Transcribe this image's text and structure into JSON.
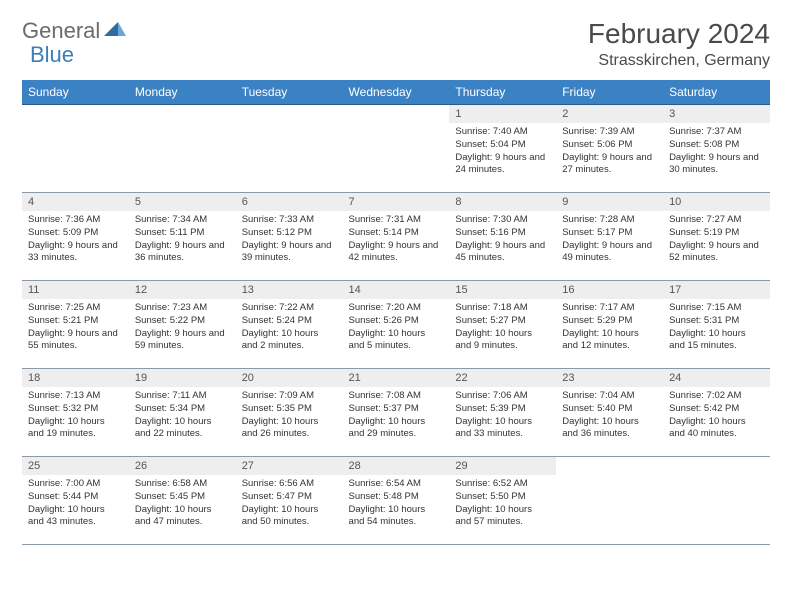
{
  "logo": {
    "part1": "General",
    "part2": "Blue"
  },
  "title": "February 2024",
  "location": "Strasskirchen, Germany",
  "colors": {
    "header_bg": "#3b82c4",
    "header_text": "#ffffff",
    "daynum_bg": "#eeeeee",
    "border": "#8a9aa8",
    "logo_gray": "#6b6b6b",
    "logo_blue": "#3b7fb8",
    "title_color": "#4a4a4a"
  },
  "weekdays": [
    "Sunday",
    "Monday",
    "Tuesday",
    "Wednesday",
    "Thursday",
    "Friday",
    "Saturday"
  ],
  "weeks": [
    [
      {
        "empty": true
      },
      {
        "empty": true
      },
      {
        "empty": true
      },
      {
        "empty": true
      },
      {
        "n": "1",
        "sr": "7:40 AM",
        "ss": "5:04 PM",
        "dl": "9 hours and 24 minutes."
      },
      {
        "n": "2",
        "sr": "7:39 AM",
        "ss": "5:06 PM",
        "dl": "9 hours and 27 minutes."
      },
      {
        "n": "3",
        "sr": "7:37 AM",
        "ss": "5:08 PM",
        "dl": "9 hours and 30 minutes."
      }
    ],
    [
      {
        "n": "4",
        "sr": "7:36 AM",
        "ss": "5:09 PM",
        "dl": "9 hours and 33 minutes."
      },
      {
        "n": "5",
        "sr": "7:34 AM",
        "ss": "5:11 PM",
        "dl": "9 hours and 36 minutes."
      },
      {
        "n": "6",
        "sr": "7:33 AM",
        "ss": "5:12 PM",
        "dl": "9 hours and 39 minutes."
      },
      {
        "n": "7",
        "sr": "7:31 AM",
        "ss": "5:14 PM",
        "dl": "9 hours and 42 minutes."
      },
      {
        "n": "8",
        "sr": "7:30 AM",
        "ss": "5:16 PM",
        "dl": "9 hours and 45 minutes."
      },
      {
        "n": "9",
        "sr": "7:28 AM",
        "ss": "5:17 PM",
        "dl": "9 hours and 49 minutes."
      },
      {
        "n": "10",
        "sr": "7:27 AM",
        "ss": "5:19 PM",
        "dl": "9 hours and 52 minutes."
      }
    ],
    [
      {
        "n": "11",
        "sr": "7:25 AM",
        "ss": "5:21 PM",
        "dl": "9 hours and 55 minutes."
      },
      {
        "n": "12",
        "sr": "7:23 AM",
        "ss": "5:22 PM",
        "dl": "9 hours and 59 minutes."
      },
      {
        "n": "13",
        "sr": "7:22 AM",
        "ss": "5:24 PM",
        "dl": "10 hours and 2 minutes."
      },
      {
        "n": "14",
        "sr": "7:20 AM",
        "ss": "5:26 PM",
        "dl": "10 hours and 5 minutes."
      },
      {
        "n": "15",
        "sr": "7:18 AM",
        "ss": "5:27 PM",
        "dl": "10 hours and 9 minutes."
      },
      {
        "n": "16",
        "sr": "7:17 AM",
        "ss": "5:29 PM",
        "dl": "10 hours and 12 minutes."
      },
      {
        "n": "17",
        "sr": "7:15 AM",
        "ss": "5:31 PM",
        "dl": "10 hours and 15 minutes."
      }
    ],
    [
      {
        "n": "18",
        "sr": "7:13 AM",
        "ss": "5:32 PM",
        "dl": "10 hours and 19 minutes."
      },
      {
        "n": "19",
        "sr": "7:11 AM",
        "ss": "5:34 PM",
        "dl": "10 hours and 22 minutes."
      },
      {
        "n": "20",
        "sr": "7:09 AM",
        "ss": "5:35 PM",
        "dl": "10 hours and 26 minutes."
      },
      {
        "n": "21",
        "sr": "7:08 AM",
        "ss": "5:37 PM",
        "dl": "10 hours and 29 minutes."
      },
      {
        "n": "22",
        "sr": "7:06 AM",
        "ss": "5:39 PM",
        "dl": "10 hours and 33 minutes."
      },
      {
        "n": "23",
        "sr": "7:04 AM",
        "ss": "5:40 PM",
        "dl": "10 hours and 36 minutes."
      },
      {
        "n": "24",
        "sr": "7:02 AM",
        "ss": "5:42 PM",
        "dl": "10 hours and 40 minutes."
      }
    ],
    [
      {
        "n": "25",
        "sr": "7:00 AM",
        "ss": "5:44 PM",
        "dl": "10 hours and 43 minutes."
      },
      {
        "n": "26",
        "sr": "6:58 AM",
        "ss": "5:45 PM",
        "dl": "10 hours and 47 minutes."
      },
      {
        "n": "27",
        "sr": "6:56 AM",
        "ss": "5:47 PM",
        "dl": "10 hours and 50 minutes."
      },
      {
        "n": "28",
        "sr": "6:54 AM",
        "ss": "5:48 PM",
        "dl": "10 hours and 54 minutes."
      },
      {
        "n": "29",
        "sr": "6:52 AM",
        "ss": "5:50 PM",
        "dl": "10 hours and 57 minutes."
      },
      {
        "empty": true
      },
      {
        "empty": true
      }
    ]
  ],
  "labels": {
    "sunrise": "Sunrise:",
    "sunset": "Sunset:",
    "daylight": "Daylight:"
  }
}
